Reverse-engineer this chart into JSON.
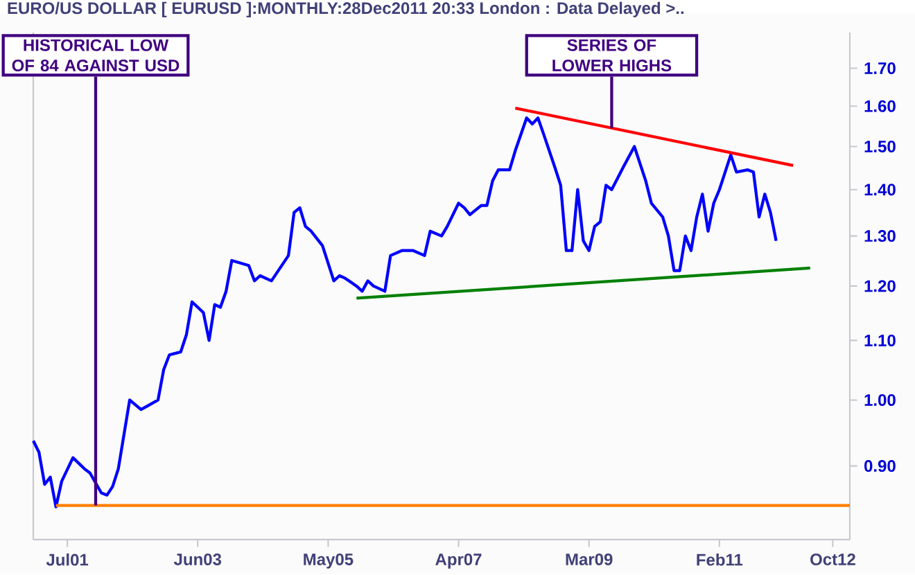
{
  "chart_data": {
    "type": "line",
    "title": "EURO/US DOLLAR [ EURUSD ]:MONTHLY:28Dec2011 20:33 London : Data Delayed >..",
    "log": "y",
    "xlim": [
      "2001-01",
      "2013-01"
    ],
    "ylim": [
      0.8,
      1.8
    ],
    "xticks": [
      {
        "value": "2001-07",
        "label": "Jul01"
      },
      {
        "value": "2003-06",
        "label": "Jun03"
      },
      {
        "value": "2005-05",
        "label": "May05"
      },
      {
        "value": "2007-04",
        "label": "Apr07"
      },
      {
        "value": "2009-03",
        "label": "Mar09"
      },
      {
        "value": "2011-02",
        "label": "Feb11"
      },
      {
        "value": "2012-10",
        "label": "Oct12"
      }
    ],
    "yticks": [
      {
        "value": 0.9,
        "label": "0.90"
      },
      {
        "value": 1.0,
        "label": "1.00"
      },
      {
        "value": 1.1,
        "label": "1.10"
      },
      {
        "value": 1.2,
        "label": "1.20"
      },
      {
        "value": 1.3,
        "label": "1.30"
      },
      {
        "value": 1.4,
        "label": "1.40"
      },
      {
        "value": 1.5,
        "label": "1.50"
      },
      {
        "value": 1.6,
        "label": "1.60"
      },
      {
        "value": 1.7,
        "label": "1.70"
      }
    ],
    "series": [
      {
        "color": "#0000ff",
        "x": [
          "2001-01",
          "2001-02",
          "2001-03",
          "2001-04",
          "2001-05",
          "2001-06",
          "2001-08",
          "2001-10",
          "2001-11",
          "2002-01",
          "2002-02",
          "2002-03",
          "2002-04",
          "2002-06",
          "2002-08",
          "2002-09",
          "2002-11",
          "2002-12",
          "2003-01",
          "2003-03",
          "2003-04",
          "2003-05",
          "2003-07",
          "2003-08",
          "2003-09",
          "2003-10",
          "2003-11",
          "2003-12",
          "2004-03",
          "2004-04",
          "2004-05",
          "2004-07",
          "2004-10",
          "2004-11",
          "2004-12",
          "2005-01",
          "2005-02",
          "2005-04",
          "2005-06",
          "2005-07",
          "2005-08",
          "2005-10",
          "2005-11",
          "2005-12",
          "2006-01",
          "2006-03",
          "2006-04",
          "2006-06",
          "2006-08",
          "2006-10",
          "2006-11",
          "2007-01",
          "2007-02",
          "2007-04",
          "2007-05",
          "2007-06",
          "2007-08",
          "2007-09",
          "2007-10",
          "2007-11",
          "2008-01",
          "2008-02",
          "2008-04",
          "2008-05",
          "2008-06",
          "2008-07",
          "2008-09",
          "2008-10",
          "2008-11",
          "2008-12",
          "2009-01",
          "2009-02",
          "2009-03",
          "2009-04",
          "2009-05",
          "2009-06",
          "2009-07",
          "2009-09",
          "2009-11",
          "2010-01",
          "2010-02",
          "2010-04",
          "2010-05",
          "2010-06",
          "2010-07",
          "2010-08",
          "2010-09",
          "2010-10",
          "2010-11",
          "2010-12",
          "2011-01",
          "2011-02",
          "2011-04",
          "2011-05",
          "2011-07",
          "2011-08",
          "2011-09",
          "2011-10",
          "2011-11",
          "2011-12"
        ],
        "values": [
          0.937,
          0.92,
          0.874,
          0.884,
          0.843,
          0.878,
          0.912,
          0.896,
          0.89,
          0.862,
          0.859,
          0.871,
          0.896,
          1.0,
          0.985,
          0.99,
          1.0,
          1.05,
          1.075,
          1.08,
          1.11,
          1.17,
          1.15,
          1.1,
          1.165,
          1.16,
          1.19,
          1.25,
          1.24,
          1.21,
          1.22,
          1.21,
          1.26,
          1.35,
          1.36,
          1.32,
          1.31,
          1.28,
          1.21,
          1.22,
          1.215,
          1.2,
          1.19,
          1.21,
          1.2,
          1.19,
          1.26,
          1.27,
          1.27,
          1.26,
          1.31,
          1.3,
          1.32,
          1.37,
          1.36,
          1.345,
          1.365,
          1.365,
          1.42,
          1.445,
          1.445,
          1.49,
          1.57,
          1.555,
          1.57,
          1.53,
          1.45,
          1.41,
          1.27,
          1.27,
          1.4,
          1.29,
          1.27,
          1.32,
          1.33,
          1.41,
          1.4,
          1.45,
          1.5,
          1.42,
          1.37,
          1.34,
          1.3,
          1.23,
          1.23,
          1.3,
          1.27,
          1.34,
          1.39,
          1.31,
          1.37,
          1.4,
          1.48,
          1.44,
          1.445,
          1.44,
          1.34,
          1.39,
          1.35,
          1.29
        ]
      },
      {
        "color": "#ff0000",
        "x": [
          "2008-02",
          "2012-03"
        ],
        "values": [
          1.595,
          1.455
        ]
      },
      {
        "color": "#008000",
        "x": [
          "2005-10",
          "2012-06"
        ],
        "values": [
          1.177,
          1.235
        ]
      },
      {
        "color": "#ff8000",
        "x": [
          "2001-05",
          "2013-01"
        ],
        "values": [
          0.845,
          0.845
        ]
      }
    ],
    "annotations": [
      {
        "text": "HISTORICAL LOW OF 84 AGAINST USD",
        "x": "2001-12",
        "y": 0.845
      },
      {
        "text": "SERIES OF LOWER HIGHS",
        "x": "2009-07",
        "y": 1.545
      }
    ]
  }
}
